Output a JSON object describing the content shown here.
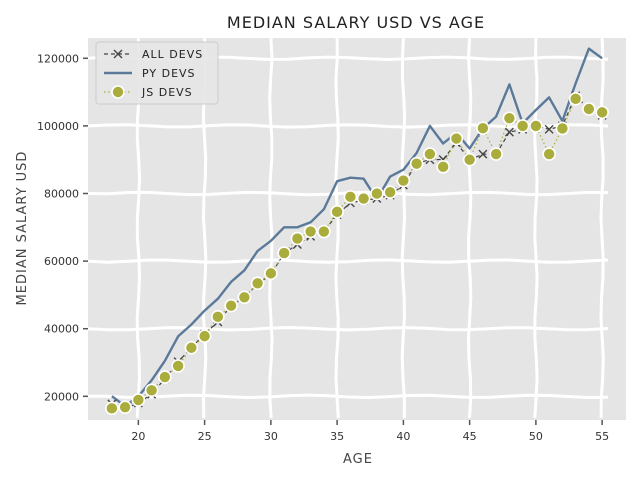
{
  "chart_data": {
    "type": "line",
    "title": "MEDIAN SALARY USD VS AGE",
    "xlabel": "AGE",
    "ylabel": "MEDIAN SALARY USD",
    "xlim": [
      16.2,
      56.8
    ],
    "ylim": [
      13000,
      126000
    ],
    "xticks": [
      20,
      25,
      30,
      35,
      40,
      45,
      50,
      55
    ],
    "yticks": [
      20000,
      40000,
      60000,
      80000,
      100000,
      120000
    ],
    "grid": true,
    "legend_position": "top-left",
    "x": [
      18,
      19,
      20,
      21,
      22,
      23,
      24,
      25,
      26,
      27,
      28,
      29,
      30,
      31,
      32,
      33,
      34,
      35,
      36,
      37,
      38,
      39,
      40,
      41,
      42,
      43,
      44,
      45,
      46,
      47,
      48,
      49,
      50,
      51,
      52,
      53,
      54,
      55
    ],
    "series": [
      {
        "name": "ALL DEVS",
        "color": "#444444",
        "style": "dashed-x",
        "values": [
          17784,
          16500,
          18012,
          20628,
          25206,
          30252,
          34368,
          38496,
          42000,
          46752,
          49320,
          53200,
          56000,
          62316,
          64928,
          67317,
          68748,
          73752,
          77232,
          78000,
          78508,
          79536,
          82488,
          88935,
          90000,
          90056,
          95000,
          90000,
          91633,
          91660,
          98150,
          98964,
          100000,
          98988,
          100000,
          108923,
          105000,
          103117
        ]
      },
      {
        "name": "PY DEVS",
        "color": "#5b7a99",
        "style": "solid",
        "values": [
          20046,
          17100,
          20000,
          24744,
          30500,
          37732,
          41247,
          45372,
          48876,
          53850,
          57287,
          63016,
          65998,
          70003,
          70000,
          71496,
          75370,
          83640,
          84666,
          84392,
          78254,
          85000,
          87038,
          91991,
          100000,
          94796,
          97962,
          93302,
          99240,
          102736,
          112285,
          100771,
          104708,
          108423,
          101407,
          112542,
          122870,
          120000
        ]
      },
      {
        "name": "JS DEVS",
        "color": "#aaad3c",
        "style": "dotted-circle",
        "values": [
          16446,
          16791,
          18942,
          21780,
          25704,
          29000,
          34372,
          37810,
          43515,
          46823,
          49293,
          53437,
          56373,
          62375,
          66674,
          68745,
          68746,
          74583,
          79000,
          78508,
          79996,
          80403,
          83820,
          88833,
          91660,
          87892,
          96243,
          90000,
          99313,
          91660,
          102264,
          100000,
          100000,
          91660,
          99240,
          108000,
          105000,
          104000
        ]
      }
    ]
  }
}
